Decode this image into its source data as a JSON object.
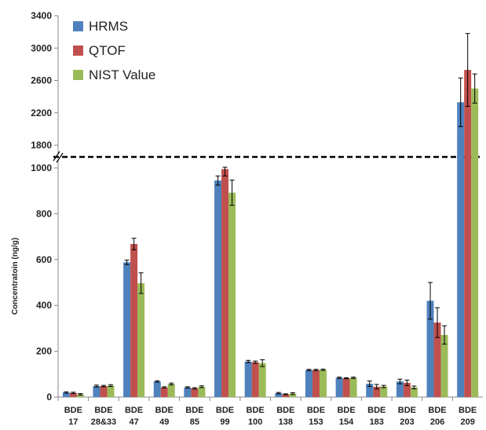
{
  "chart_data": {
    "type": "bar",
    "title": "",
    "xlabel": "",
    "ylabel": "Concentratoin (ng/g)",
    "axis_break": {
      "lower_range": [
        0,
        1000
      ],
      "upper_range": [
        1800,
        3400
      ]
    },
    "lower_ticks": [
      "0",
      "200",
      "400",
      "600",
      "800",
      "1000"
    ],
    "upper_ticks": [
      "1800",
      "2200",
      "2600",
      "3000",
      "3400"
    ],
    "legend_position": "top-left",
    "grid": false,
    "categories": [
      {
        "line1": "BDE",
        "line2": "17"
      },
      {
        "line1": "BDE",
        "line2": "28&33"
      },
      {
        "line1": "BDE",
        "line2": "47"
      },
      {
        "line1": "BDE",
        "line2": "49"
      },
      {
        "line1": "BDE",
        "line2": "85"
      },
      {
        "line1": "BDE",
        "line2": "99"
      },
      {
        "line1": "BDE",
        "line2": "100"
      },
      {
        "line1": "BDE",
        "line2": "138"
      },
      {
        "line1": "BDE",
        "line2": "153"
      },
      {
        "line1": "BDE",
        "line2": "154"
      },
      {
        "line1": "BDE",
        "line2": "183"
      },
      {
        "line1": "BDE",
        "line2": "203"
      },
      {
        "line1": "BDE",
        "line2": "206"
      },
      {
        "line1": "BDE",
        "line2": "209"
      }
    ],
    "series": [
      {
        "name": "HRMS",
        "color": "#4f81bd",
        "values": [
          20,
          48,
          588,
          68,
          42,
          945,
          155,
          17,
          118,
          84,
          58,
          68,
          420,
          2330
        ],
        "errors": [
          3,
          4,
          10,
          3,
          3,
          20,
          5,
          3,
          3,
          3,
          12,
          10,
          80,
          300
        ]
      },
      {
        "name": "QTOF",
        "color": "#c0504d",
        "values": [
          18,
          48,
          668,
          42,
          38,
          995,
          152,
          12,
          118,
          82,
          45,
          62,
          325,
          2730
        ],
        "errors": [
          3,
          3,
          25,
          3,
          3,
          30,
          5,
          2,
          3,
          2,
          10,
          12,
          65,
          450
        ]
      },
      {
        "name": "NIST Value",
        "color": "#9bbb59",
        "values": [
          12,
          50,
          497,
          57,
          45,
          892,
          148,
          15,
          119,
          84,
          46,
          42,
          271,
          2500
        ],
        "errors": [
          3,
          4,
          45,
          4,
          4,
          55,
          15,
          4,
          3,
          3,
          5,
          6,
          40,
          180
        ]
      }
    ]
  }
}
